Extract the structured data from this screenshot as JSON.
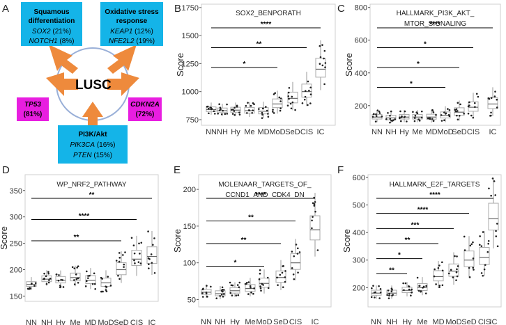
{
  "panel_a": {
    "label": "A",
    "center_label": "LUSC",
    "boxes": [
      {
        "id": "squamous",
        "title1": "Squamous",
        "title2": "differentiation",
        "genes": [
          {
            "gene": "SOX2",
            "pct": " (21%)"
          },
          {
            "gene": "NOTCH1",
            "pct": " (8%)"
          }
        ]
      },
      {
        "id": "oxidative",
        "title1": "Oxidative stress",
        "title2": "response",
        "genes": [
          {
            "gene": "KEAP1",
            "pct": " (12%)"
          },
          {
            "gene": "NFE2L2",
            "pct": " (19%)"
          }
        ]
      },
      {
        "id": "tp53",
        "gene": "TP53",
        "pct": "(81%)"
      },
      {
        "id": "cdkn2a",
        "gene": "CDKN2A",
        "pct": "(72%)"
      },
      {
        "id": "pi3k",
        "title1": "PI3K/Akt",
        "genes": [
          {
            "gene": "PIK3CA",
            "pct": " (16%)"
          },
          {
            "gene": "PTEN",
            "pct": " (15%)"
          }
        ]
      }
    ],
    "colors": {
      "blue": "#14b4e8",
      "magenta": "#e81ee0",
      "arrow": "#ee8a3c",
      "ring": "#9ab0d8"
    }
  },
  "chart_data": [
    {
      "panel": "B",
      "type": "boxplot",
      "title": "SOX2_BENPORATH",
      "ylabel": "Score",
      "ylim": [
        700,
        1780
      ],
      "yticks": [
        750,
        1000,
        1250,
        1500,
        1750
      ],
      "categories": [
        "NN",
        "NH",
        "Hy",
        "Me",
        "MD",
        "MoD",
        "SeD",
        "CIS",
        "IC"
      ],
      "medians": [
        840,
        830,
        835,
        830,
        825,
        890,
        940,
        1000,
        1200
      ],
      "significance": [
        {
          "to": "IC",
          "label": "****"
        },
        {
          "to": "CIS",
          "label": "**"
        },
        {
          "to": "MoD",
          "label": "*"
        }
      ]
    },
    {
      "panel": "C",
      "type": "boxplot",
      "title": "HALLMARK_PI3K_AKT_",
      "title2": "MTOR_SIGNALING",
      "ylabel": "Score",
      "ylim": [
        80,
        820
      ],
      "yticks": [
        200,
        400,
        600,
        800
      ],
      "categories": [
        "NN",
        "NH",
        "Hy",
        "Me",
        "MD",
        "MoD",
        "SeD",
        "CIS",
        "IC"
      ],
      "medians": [
        130,
        125,
        130,
        130,
        130,
        140,
        160,
        190,
        210
      ],
      "significance": [
        {
          "to": "IC",
          "label": "****"
        },
        {
          "to": "CIS",
          "label": "*"
        },
        {
          "to": "SeD",
          "label": "*"
        },
        {
          "to": "MoD",
          "label": "*"
        }
      ]
    },
    {
      "panel": "D",
      "type": "boxplot",
      "title": "WP_NRF2_PATHWAY",
      "ylabel": "Score",
      "ylim": [
        140,
        380
      ],
      "yticks": [
        150,
        200,
        250,
        300,
        350
      ],
      "xlabels": [
        "NN",
        "NH",
        "Hy",
        "Me",
        "MD",
        "MoD",
        "SeD",
        "CIS",
        "IC"
      ],
      "medians": [
        172,
        182,
        180,
        185,
        180,
        175,
        200,
        220,
        225
      ],
      "significance": [
        {
          "to": "IC",
          "label": "**"
        },
        {
          "to": "CIS",
          "label": "****"
        },
        {
          "to": "SeD",
          "label": "**"
        }
      ]
    },
    {
      "panel": "E",
      "type": "boxplot",
      "title": "MOLENAAR_TARGETS_OF_",
      "title2": "CCND1_AND_CDK4_DN",
      "ylabel": "Score",
      "ylim": [
        40,
        220
      ],
      "yticks": [
        50,
        100,
        150,
        200
      ],
      "xlabels": [
        "NN",
        "NH",
        "Hy",
        "Me",
        "MoD",
        "SeD",
        "CIS",
        "IC"
      ],
      "medians": [
        60,
        58,
        62,
        65,
        72,
        80,
        100,
        145
      ],
      "significance": [
        {
          "to": "IC",
          "label": "****"
        },
        {
          "to": "CIS",
          "label": "**"
        },
        {
          "to": "SeD",
          "label": "**"
        },
        {
          "to": "MoD",
          "label": "*"
        }
      ]
    },
    {
      "panel": "F",
      "type": "boxplot",
      "title": "HALLMARK_E2F_TARGETS",
      "ylabel": "Score",
      "ylim": [
        130,
        610
      ],
      "yticks": [
        200,
        300,
        400,
        500,
        600
      ],
      "categories": [
        "NN",
        "NH",
        "Hy",
        "Me",
        "MD",
        "MoD",
        "SeD",
        "CIS",
        "IC"
      ],
      "medians": [
        180,
        180,
        190,
        200,
        240,
        260,
        300,
        310,
        450
      ],
      "significance": [
        {
          "to": "IC",
          "label": "****"
        },
        {
          "to": "SeD",
          "label": "****"
        },
        {
          "to": "MoD",
          "label": "***"
        },
        {
          "to": "MD",
          "label": "**"
        },
        {
          "to": "Me",
          "label": "*"
        },
        {
          "to": "Hy",
          "label": "**"
        }
      ]
    }
  ]
}
